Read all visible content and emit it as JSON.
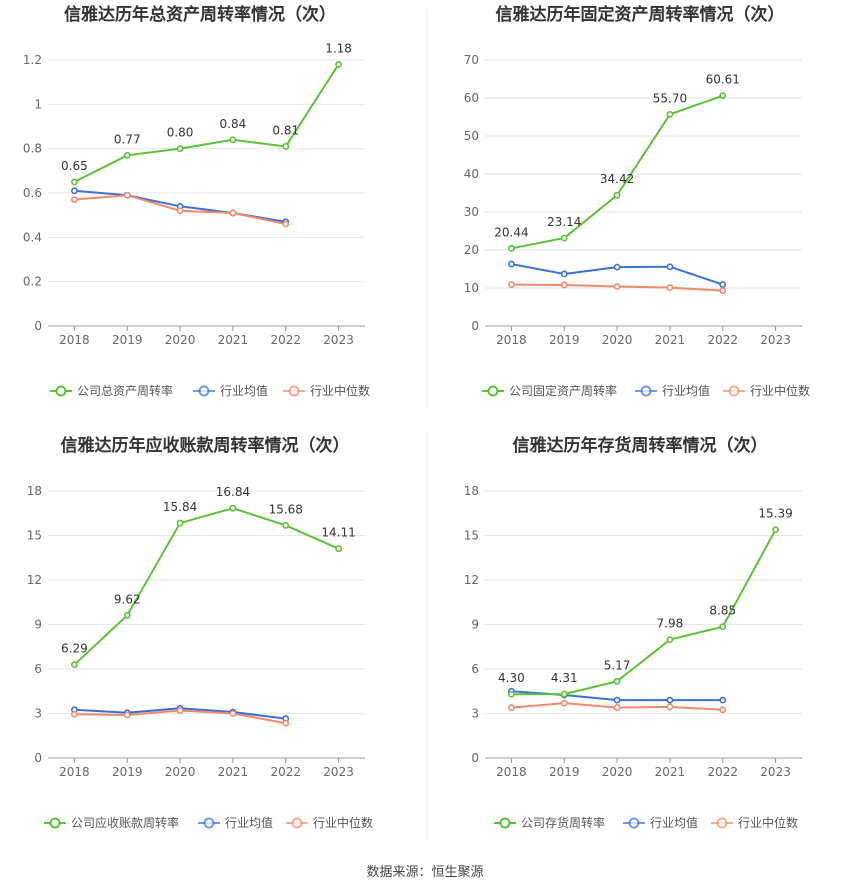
{
  "colors": {
    "company": "#5ac235",
    "avg": "#3a6fd8",
    "median": "#f4896a"
  },
  "source": "数据来源：恒生聚源",
  "chart_data": [
    {
      "type": "line",
      "title": "信雅达历年总资产周转率情况（次）",
      "categories": [
        "2018",
        "2019",
        "2020",
        "2021",
        "2022",
        "2023"
      ],
      "ylim": [
        0,
        1.2
      ],
      "yticks": [
        "0",
        "0.2",
        "0.4",
        "0.6",
        "0.8",
        "1",
        "1.2"
      ],
      "series": [
        {
          "name": "公司总资产周转率",
          "role": "company",
          "values": [
            0.65,
            0.77,
            0.8,
            0.84,
            0.81,
            1.18
          ],
          "labels": [
            "0.65",
            "0.77",
            "0.80",
            "0.84",
            "0.81",
            "1.18"
          ]
        },
        {
          "name": "行业均值",
          "role": "avg",
          "values": [
            0.61,
            0.59,
            0.54,
            0.51,
            0.47,
            null
          ]
        },
        {
          "name": "行业中位数",
          "role": "median",
          "values": [
            0.57,
            0.59,
            0.52,
            0.51,
            0.46,
            null
          ]
        }
      ]
    },
    {
      "type": "line",
      "title": "信雅达历年固定资产周转率情况（次）",
      "categories": [
        "2018",
        "2019",
        "2020",
        "2021",
        "2022",
        "2023"
      ],
      "ylim": [
        0,
        70
      ],
      "yticks": [
        "0",
        "10",
        "20",
        "30",
        "40",
        "50",
        "60",
        "70"
      ],
      "series": [
        {
          "name": "公司固定资产周转率",
          "role": "company",
          "values": [
            20.44,
            23.14,
            34.42,
            55.7,
            60.61,
            null
          ],
          "labels": [
            "20.44",
            "23.14",
            "34.42",
            "55.70",
            "60.61",
            null
          ]
        },
        {
          "name": "行业均值",
          "role": "avg",
          "values": [
            16.3,
            13.7,
            15.5,
            15.6,
            10.9,
            null
          ]
        },
        {
          "name": "行业中位数",
          "role": "median",
          "values": [
            10.9,
            10.8,
            10.4,
            10.1,
            9.3,
            null
          ]
        }
      ]
    },
    {
      "type": "line",
      "title": "信雅达历年应收账款周转率情况（次）",
      "categories": [
        "2018",
        "2019",
        "2020",
        "2021",
        "2022",
        "2023"
      ],
      "ylim": [
        0,
        18
      ],
      "yticks": [
        "0",
        "3",
        "6",
        "9",
        "12",
        "15",
        "18"
      ],
      "series": [
        {
          "name": "公司应收账款周转率",
          "role": "company",
          "values": [
            6.29,
            9.62,
            15.84,
            16.84,
            15.68,
            14.11
          ],
          "labels": [
            "6.29",
            "9.62",
            "15.84",
            "16.84",
            "15.68",
            "14.11"
          ]
        },
        {
          "name": "行业均值",
          "role": "avg",
          "values": [
            3.25,
            3.05,
            3.35,
            3.1,
            2.65,
            null
          ]
        },
        {
          "name": "行业中位数",
          "role": "median",
          "values": [
            2.95,
            2.9,
            3.2,
            3.0,
            2.35,
            null
          ]
        }
      ]
    },
    {
      "type": "line",
      "title": "信雅达历年存货周转率情况（次）",
      "categories": [
        "2018",
        "2019",
        "2020",
        "2021",
        "2022",
        "2023"
      ],
      "ylim": [
        0,
        18
      ],
      "yticks": [
        "0",
        "3",
        "6",
        "9",
        "12",
        "15",
        "18"
      ],
      "series": [
        {
          "name": "公司存货周转率",
          "role": "company",
          "values": [
            4.3,
            4.31,
            5.17,
            7.98,
            8.85,
            15.39
          ],
          "labels": [
            "4.30",
            "4.31",
            "5.17",
            "7.98",
            "8.85",
            "15.39"
          ]
        },
        {
          "name": "行业均值",
          "role": "avg",
          "values": [
            4.5,
            4.25,
            3.9,
            3.9,
            3.9,
            null
          ]
        },
        {
          "name": "行业中位数",
          "role": "median",
          "values": [
            3.4,
            3.7,
            3.4,
            3.45,
            3.25,
            null
          ]
        }
      ]
    }
  ]
}
